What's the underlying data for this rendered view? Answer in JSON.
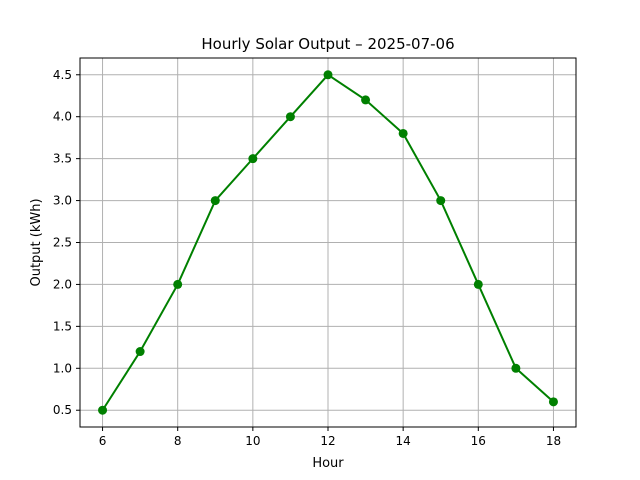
{
  "chart_data": {
    "type": "line",
    "title": "Hourly Solar Output – 2025-07-06",
    "xlabel": "Hour",
    "ylabel": "Output (kWh)",
    "x": [
      6,
      7,
      8,
      9,
      10,
      11,
      12,
      13,
      14,
      15,
      16,
      17,
      18
    ],
    "series": [
      {
        "values": [
          0.5,
          1.2,
          2.0,
          3.0,
          3.5,
          4.0,
          4.5,
          4.2,
          3.8,
          3.0,
          2.0,
          1.0,
          0.6
        ],
        "color": "#008000",
        "marker": "circle"
      }
    ],
    "xlim": [
      5.4,
      18.6
    ],
    "ylim": [
      0.3,
      4.7
    ],
    "xticks": [
      6,
      8,
      10,
      12,
      14,
      16,
      18
    ],
    "yticks": [
      0.5,
      1.0,
      1.5,
      2.0,
      2.5,
      3.0,
      3.5,
      4.0,
      4.5
    ],
    "yticks_labels": [
      "0.5",
      "1.0",
      "1.5",
      "2.0",
      "2.5",
      "3.0",
      "3.5",
      "4.0",
      "4.5"
    ],
    "grid": true
  }
}
